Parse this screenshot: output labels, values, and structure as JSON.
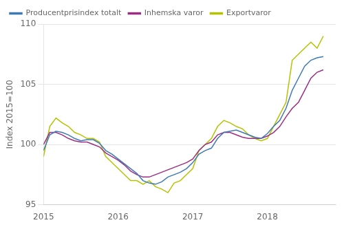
{
  "chart_data": {
    "type": "line",
    "ylabel": "Index 2015=100",
    "x": [
      2015,
      2015.0833333333333,
      2015.1666666666667,
      2015.25,
      2015.3333333333333,
      2015.4166666666667,
      2015.5,
      2015.5833333333333,
      2015.6666666666667,
      2015.75,
      2015.8333333333333,
      2015.9166666666667,
      2016,
      2016.0833333333333,
      2016.1666666666667,
      2016.25,
      2016.3333333333333,
      2016.4166666666667,
      2016.5,
      2016.5833333333333,
      2016.6666666666667,
      2016.75,
      2016.8333333333333,
      2016.9166666666667,
      2017,
      2017.0833333333333,
      2017.1666666666667,
      2017.25,
      2017.3333333333333,
      2017.4166666666667,
      2017.5,
      2017.5833333333333,
      2017.6666666666667,
      2017.75,
      2017.8333333333333,
      2017.9166666666667,
      2018,
      2018.0833333333333,
      2018.1666666666667,
      2018.25,
      2018.3333333333333,
      2018.4166666666667,
      2018.5,
      2018.5833333333333,
      2018.6666666666667,
      2018.75
    ],
    "series": [
      {
        "name": "Producentprisindex totalt",
        "color": "#3d7ab5",
        "values": [
          99.5,
          100.8,
          101.1,
          101.0,
          100.8,
          100.5,
          100.3,
          100.4,
          100.4,
          100.1,
          99.5,
          99.2,
          98.8,
          98.4,
          98.0,
          97.6,
          97.0,
          96.8,
          96.7,
          96.9,
          97.3,
          97.5,
          97.7,
          98.0,
          98.5,
          99.2,
          99.5,
          99.7,
          100.5,
          101.0,
          101.1,
          101.2,
          101.0,
          100.8,
          100.6,
          100.5,
          100.9,
          101.5,
          102.0,
          103.0,
          104.5,
          105.5,
          106.5,
          107.0,
          107.2,
          107.3
        ]
      },
      {
        "name": "Inhemska varor",
        "color": "#9b2d82",
        "values": [
          100.0,
          101.0,
          101.0,
          100.8,
          100.5,
          100.3,
          100.2,
          100.2,
          100.0,
          99.8,
          99.3,
          99.0,
          98.7,
          98.3,
          97.8,
          97.5,
          97.3,
          97.3,
          97.5,
          97.7,
          97.9,
          98.1,
          98.3,
          98.5,
          98.8,
          99.5,
          100.0,
          100.2,
          100.8,
          101.0,
          101.0,
          100.8,
          100.6,
          100.5,
          100.5,
          100.5,
          100.7,
          101.0,
          101.5,
          102.3,
          103.0,
          103.5,
          104.5,
          105.5,
          106.0,
          106.2
        ]
      },
      {
        "name": "Exportvaror",
        "color": "#b5c200",
        "values": [
          99.0,
          101.5,
          102.2,
          101.8,
          101.5,
          101.0,
          100.8,
          100.5,
          100.5,
          100.2,
          99.0,
          98.5,
          98.0,
          97.5,
          97.0,
          97.0,
          96.7,
          97.0,
          96.5,
          96.3,
          96.0,
          96.8,
          97.0,
          97.5,
          98.0,
          99.5,
          100.0,
          100.5,
          101.5,
          102.0,
          101.8,
          101.5,
          101.3,
          100.8,
          100.5,
          100.3,
          100.5,
          101.5,
          102.5,
          103.5,
          107.0,
          107.5,
          108.0,
          108.5,
          108.0,
          109.0
        ]
      }
    ],
    "xlim": [
      2015,
      2018.9166666666667
    ],
    "xticks": [
      2015,
      2016,
      2017,
      2018
    ],
    "ylim": [
      95,
      110
    ],
    "yticks": [
      95,
      100,
      105,
      110
    ],
    "grid": "y",
    "legend": "upper left"
  }
}
